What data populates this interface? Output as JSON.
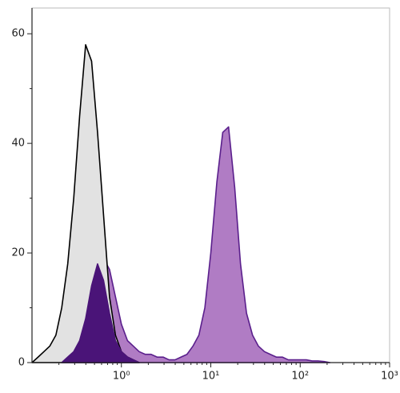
{
  "chart_data": {
    "type": "histogram-area",
    "x": [
      0.1,
      0.117,
      0.136,
      0.158,
      0.185,
      0.215,
      0.251,
      0.293,
      0.341,
      0.398,
      0.464,
      0.541,
      0.631,
      0.736,
      0.858,
      1,
      1.17,
      1.36,
      1.58,
      1.85,
      2.15,
      2.51,
      2.93,
      3.41,
      3.98,
      4.64,
      5.41,
      6.31,
      7.36,
      8.58,
      10,
      11.7,
      13.6,
      15.8,
      18.5,
      21.5,
      25.1,
      29.3,
      34.1,
      39.8,
      46.4,
      54.1,
      63.1,
      73.6,
      85.8,
      100,
      117,
      136,
      158,
      185,
      215
    ],
    "series": [
      {
        "color": "#5a1f8c",
        "fill": "#b07cc4",
        "values": [
          null,
          null,
          null,
          null,
          null,
          0,
          1,
          2,
          4,
          7,
          12,
          17,
          19,
          17,
          12,
          7,
          4,
          3,
          2,
          1.5,
          1.5,
          1,
          1,
          0.5,
          0.5,
          1,
          1.5,
          3,
          5,
          10,
          20,
          33,
          42,
          43,
          32,
          18,
          9,
          5,
          3,
          2,
          1.5,
          1,
          1,
          0.5,
          0.5,
          0.5,
          0.5,
          0.3,
          0.3,
          0.2,
          0
        ]
      },
      {
        "color": "#000000",
        "fill": "#e2e2e2",
        "values": [
          0,
          1,
          2,
          3,
          5,
          10,
          18,
          30,
          45,
          58,
          55,
          42,
          27,
          12,
          5,
          2,
          1,
          0.5,
          0,
          null,
          null,
          null,
          null,
          null,
          null,
          null,
          null,
          null,
          null,
          null,
          null,
          null,
          null,
          null,
          null,
          null,
          null,
          null,
          null,
          null,
          null,
          null,
          null,
          null,
          null,
          null,
          null,
          null,
          null,
          null,
          null
        ]
      },
      {
        "color": "#4a1478",
        "fill": "#4a1478",
        "values": [
          null,
          null,
          null,
          null,
          null,
          0,
          1,
          2,
          4,
          8,
          14,
          18,
          15,
          9,
          4,
          2,
          1,
          0.5,
          0,
          null,
          null,
          null,
          null,
          null,
          null,
          null,
          null,
          null,
          null,
          null,
          null,
          null,
          null,
          null,
          null,
          null,
          null,
          null,
          null,
          null,
          null,
          null,
          null,
          null,
          null,
          null,
          null,
          null,
          null,
          null,
          null
        ]
      }
    ],
    "xscale": "log",
    "xlim": [
      0.1,
      1000
    ],
    "xticks": [
      {
        "value": 1,
        "label": "10⁰"
      },
      {
        "value": 10,
        "label": "10¹"
      },
      {
        "value": 100,
        "label": "10²"
      },
      {
        "value": 1000,
        "label": "10³"
      }
    ],
    "xminorticks": [
      0.2,
      0.3,
      0.4,
      0.5,
      0.6,
      0.7,
      0.8,
      0.9,
      2,
      3,
      4,
      5,
      6,
      7,
      8,
      9,
      20,
      30,
      40,
      50,
      60,
      70,
      80,
      90,
      200,
      300,
      400,
      500,
      600,
      700,
      800,
      900
    ],
    "ylim": [
      0,
      64.7
    ],
    "yticks": [
      0,
      20,
      40,
      60
    ],
    "yminorticks": [
      10,
      30,
      50
    ]
  }
}
